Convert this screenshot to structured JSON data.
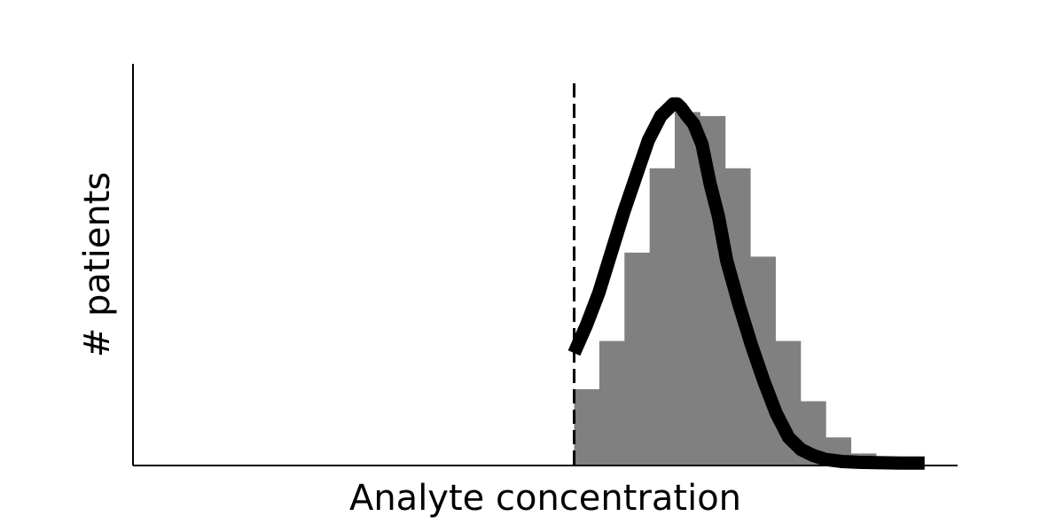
{
  "chart_data": {
    "type": "area",
    "title": "",
    "xlabel": "Analyte concentration",
    "ylabel": "# patients",
    "xlim": [
      0,
      1
    ],
    "ylim": [
      0,
      1
    ],
    "grid": false,
    "ticks": false,
    "threshold": 0.535,
    "colors": {
      "hist_fill": "#808080",
      "curve": "#000000",
      "threshold_line": "#000000",
      "axes": "#000000"
    },
    "histogram": {
      "bin_width": 0.0305,
      "bins": [
        {
          "x": 0.535,
          "count": 0.19
        },
        {
          "x": 0.5655,
          "count": 0.31
        },
        {
          "x": 0.596,
          "count": 0.53
        },
        {
          "x": 0.6265,
          "count": 0.74
        },
        {
          "x": 0.657,
          "count": 0.88
        },
        {
          "x": 0.6875,
          "count": 0.87
        },
        {
          "x": 0.718,
          "count": 0.74
        },
        {
          "x": 0.7485,
          "count": 0.52
        },
        {
          "x": 0.779,
          "count": 0.31
        },
        {
          "x": 0.8095,
          "count": 0.16
        },
        {
          "x": 0.84,
          "count": 0.07
        },
        {
          "x": 0.8705,
          "count": 0.03
        },
        {
          "x": 0.901,
          "count": 0.01
        }
      ]
    },
    "series": [
      {
        "x": [
          0.535,
          0.55,
          0.565,
          0.58,
          0.595,
          0.61,
          0.625,
          0.64,
          0.65,
          0.655,
          0.66,
          0.665,
          0.672,
          0.68,
          0.69,
          0.7,
          0.71,
          0.72,
          0.735,
          0.75,
          0.765,
          0.78,
          0.795,
          0.81,
          0.825,
          0.84,
          0.86,
          0.88,
          0.9,
          0.93,
          0.96
        ],
        "y": [
          0.28,
          0.35,
          0.43,
          0.53,
          0.63,
          0.72,
          0.81,
          0.87,
          0.89,
          0.9,
          0.9,
          0.89,
          0.87,
          0.85,
          0.8,
          0.7,
          0.62,
          0.51,
          0.4,
          0.3,
          0.21,
          0.13,
          0.07,
          0.04,
          0.025,
          0.015,
          0.01,
          0.008,
          0.007,
          0.006,
          0.006
        ]
      }
    ]
  }
}
